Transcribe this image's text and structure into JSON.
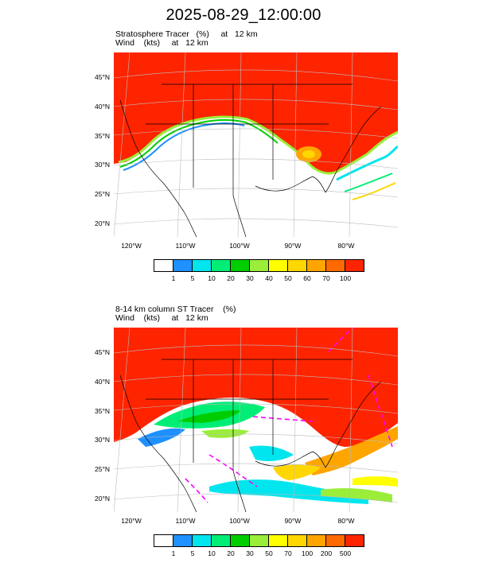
{
  "title": "2025-08-29_12:00:00",
  "panels": [
    {
      "title_line1": "Stratosphere Tracer   (%)     at   12 km",
      "title_line2": "Wind    (kts)     at   12 km",
      "lat_labels": [
        "45°N",
        "40°N",
        "35°N",
        "30°N",
        "25°N",
        "20°N"
      ],
      "lon_labels": [
        "120°W",
        "110°W",
        "100°W",
        "90°W",
        "80°W"
      ],
      "colorbar": {
        "colors": [
          "#ffffff",
          "#1e90ff",
          "#00e5ee",
          "#00ee76",
          "#00cd00",
          "#9aee3a",
          "#ffff00",
          "#ffd700",
          "#ffa500",
          "#ff6a00",
          "#ff2400"
        ],
        "labels": [
          "1",
          "5",
          "10",
          "20",
          "30",
          "40",
          "50",
          "60",
          "70",
          "100"
        ]
      }
    },
    {
      "title_line1": "8-14 km column ST Tracer    (%)",
      "title_line2": "Wind    (kts)     at   12 km",
      "lat_labels": [
        "45°N",
        "40°N",
        "35°N",
        "30°N",
        "25°N",
        "20°N"
      ],
      "lon_labels": [
        "120°W",
        "110°W",
        "100°W",
        "90°W",
        "80°W"
      ],
      "colorbar": {
        "colors": [
          "#ffffff",
          "#1e90ff",
          "#00e5ee",
          "#00ee76",
          "#00cd00",
          "#9aee3a",
          "#ffff00",
          "#ffd700",
          "#ffa500",
          "#ff6a00",
          "#ff2400"
        ],
        "labels": [
          "1",
          "5",
          "10",
          "20",
          "30",
          "50",
          "70",
          "100",
          "200",
          "500"
        ]
      }
    }
  ]
}
